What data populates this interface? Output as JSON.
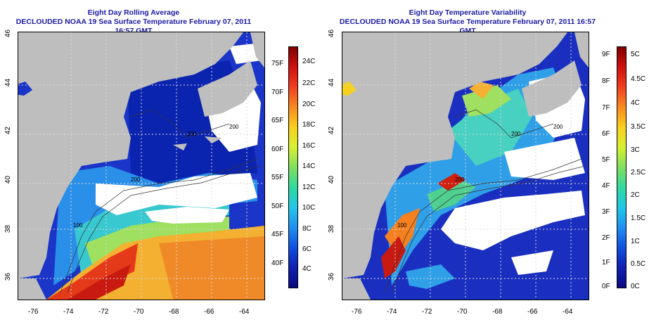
{
  "left_panel": {
    "title": "Eight Day Rolling Average",
    "subtitle": "DECLOUDED NOAA 19 Sea Surface Temperature February 07, 2011 16:57 GMT",
    "colorbar_f_labels": [
      "75F",
      "70F",
      "65F",
      "60F",
      "55F",
      "50F",
      "45F",
      "40F"
    ],
    "colorbar_c_labels": [
      "24C",
      "22C",
      "20C",
      "18C",
      "16C",
      "14C",
      "12C",
      "10C",
      "8C",
      "6C",
      "4C"
    ],
    "contour_labels": [
      "200",
      "200",
      "200",
      "100"
    ]
  },
  "right_panel": {
    "title": "Eight Day Temperature Variability",
    "subtitle": "DECLOUDED NOAA 19 Sea Surface Temperature February 07, 2011 16:57 GMT",
    "colorbar_f_labels": [
      "9F",
      "8F",
      "7F",
      "6F",
      "5F",
      "4F",
      "3F",
      "2F",
      "1F",
      "0F"
    ],
    "colorbar_c_labels": [
      "5C",
      "4.5C",
      "4C",
      "3.5C",
      "3C",
      "2.5C",
      "2C",
      "1.5C",
      "1C",
      "0.5C",
      "0C"
    ],
    "contour_labels": [
      "200",
      "200",
      "200",
      "100"
    ]
  },
  "axes": {
    "x_ticks": [
      "-76",
      "-74",
      "-72",
      "-70",
      "-68",
      "-66",
      "-64"
    ],
    "y_ticks": [
      "36",
      "38",
      "40",
      "42",
      "44",
      "46"
    ]
  },
  "colors": {
    "title": "#1a1aa6",
    "land": "#bebebe",
    "cloud": "#ffffff",
    "grid": "#d9d9d9"
  }
}
